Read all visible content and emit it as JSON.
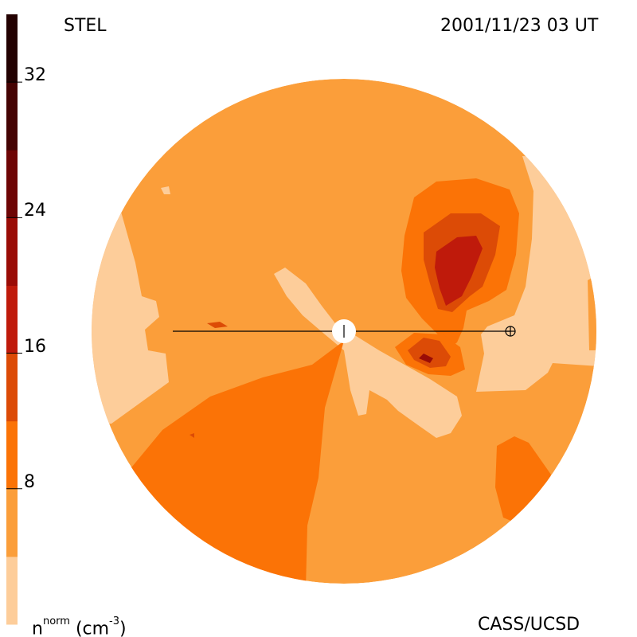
{
  "header": {
    "left_label": "STEL",
    "right_label": "2001/11/23 03 UT"
  },
  "footer": {
    "left_label_main": "n",
    "left_label_sup": "norm",
    "left_label_unit": "(cm",
    "left_label_unit_sup": "-3",
    "left_label_unit_close": ")",
    "right_label": "CASS/UCSD"
  },
  "chart_data": {
    "type": "heatmap",
    "colorbar": {
      "ticks": [
        "8",
        "16",
        "24",
        "32"
      ],
      "tick_values": [
        8,
        16,
        24,
        32
      ],
      "range": [
        0,
        36
      ],
      "levels": [
        {
          "from": 0,
          "to": 4,
          "color": "#fdcd9a"
        },
        {
          "from": 4,
          "to": 8,
          "color": "#fb9e3a"
        },
        {
          "from": 8,
          "to": 12,
          "color": "#fb7306"
        },
        {
          "from": 12,
          "to": 16,
          "color": "#dc4b06"
        },
        {
          "from": 16,
          "to": 20,
          "color": "#bf1a0b"
        },
        {
          "from": 20,
          "to": 24,
          "color": "#9a0c06"
        },
        {
          "from": 24,
          "to": 28,
          "color": "#6e0505"
        },
        {
          "from": 28,
          "to": 32,
          "color": "#450303"
        },
        {
          "from": 32,
          "to": 36,
          "color": "#230101"
        }
      ]
    },
    "markers": {
      "sun": "white disk at center",
      "earth": "⊕"
    }
  }
}
